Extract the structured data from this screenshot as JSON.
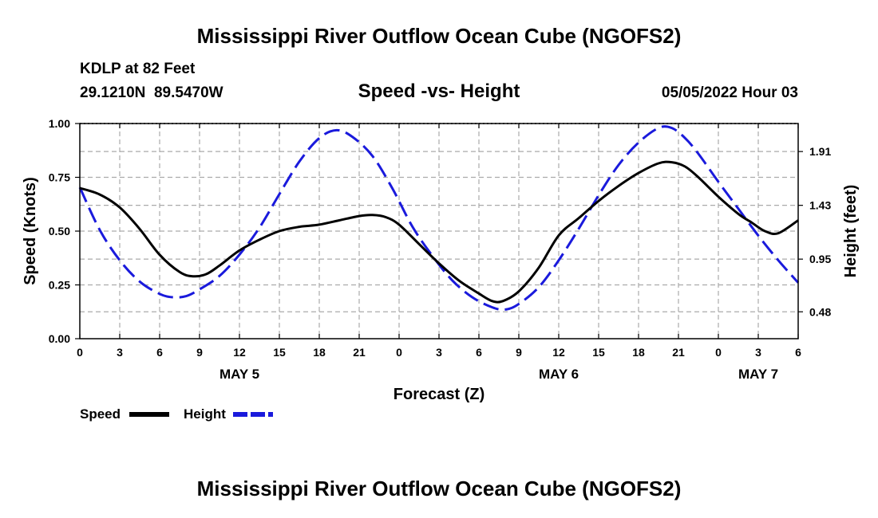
{
  "header": {
    "title": "Mississippi River Outflow Ocean Cube (NGOFS2)",
    "station": "KDLP at 82 Feet",
    "coords": "29.1210N  89.5470W",
    "datetime": "05/05/2022 Hour 03",
    "footer_title": "Mississippi River Outflow Ocean Cube (NGOFS2)"
  },
  "colors": {
    "speed": "#000000",
    "height": "#1a1adc",
    "grid": "#aaaaaa"
  },
  "chart_data": {
    "type": "line",
    "title": "Speed -vs- Height",
    "xlabel": "Forecast (Z)",
    "ylabel": "Speed (Knots)",
    "y2label": "Height (feet)",
    "xlim": [
      0,
      54
    ],
    "ylim": [
      0,
      1
    ],
    "y2lim": [
      0.24,
      2.16
    ],
    "x_ticks": [
      0,
      3,
      6,
      9,
      12,
      15,
      18,
      21,
      24,
      27,
      30,
      33,
      36,
      39,
      42,
      45,
      48,
      51,
      54
    ],
    "x_tick_labels": [
      "0",
      "3",
      "6",
      "9",
      "12",
      "15",
      "18",
      "21",
      "0",
      "3",
      "6",
      "9",
      "12",
      "15",
      "18",
      "21",
      "0",
      "3",
      "6"
    ],
    "day_labels": [
      {
        "x": 12,
        "label": "MAY 5"
      },
      {
        "x": 36,
        "label": "MAY 6"
      },
      {
        "x": 51,
        "label": "MAY 7"
      }
    ],
    "y_ticks": [
      0,
      0.25,
      0.5,
      0.75,
      1.0
    ],
    "y_tick_labels": [
      "0.00",
      "0.25",
      "0.50",
      "0.75",
      "1.00"
    ],
    "y2_ticks": [
      0.48,
      0.95,
      1.43,
      1.91
    ],
    "y2_tick_labels": [
      "0.48",
      "0.95",
      "1.43",
      "1.91"
    ],
    "legend": [
      "Speed",
      "Height"
    ],
    "series": [
      {
        "name": "Speed",
        "axis": "left",
        "style": "solid",
        "x": [
          0,
          1.5,
          3,
          4.5,
          6,
          7.5,
          8.5,
          9.5,
          10.5,
          12,
          13.5,
          15,
          16.5,
          18,
          19.5,
          21,
          22,
          23,
          24,
          25.5,
          27,
          28.5,
          30,
          31,
          31.8,
          33,
          34.5,
          36,
          37.5,
          39,
          40.5,
          42,
          43.5,
          44.5,
          45.5,
          46.5,
          48,
          49.5,
          50.5,
          51.5,
          52.5,
          54
        ],
        "values": [
          0.7,
          0.67,
          0.61,
          0.51,
          0.39,
          0.31,
          0.29,
          0.3,
          0.34,
          0.41,
          0.46,
          0.5,
          0.52,
          0.53,
          0.55,
          0.57,
          0.575,
          0.565,
          0.53,
          0.44,
          0.35,
          0.27,
          0.21,
          0.175,
          0.175,
          0.22,
          0.33,
          0.48,
          0.56,
          0.64,
          0.71,
          0.77,
          0.815,
          0.82,
          0.8,
          0.75,
          0.66,
          0.58,
          0.54,
          0.5,
          0.49,
          0.55
        ]
      },
      {
        "name": "Height",
        "axis": "right",
        "style": "dashed",
        "x": [
          0,
          1.5,
          3,
          4.5,
          6,
          7,
          8,
          9,
          10.5,
          12,
          13.5,
          15,
          16.5,
          18,
          19.3,
          20.5,
          22,
          23.5,
          25,
          26.5,
          28,
          29.5,
          31,
          32,
          33,
          34.5,
          36,
          37.5,
          39,
          40.5,
          42,
          43.5,
          44.5,
          45.5,
          46.5,
          48,
          49.5,
          51,
          52.5,
          54
        ],
        "values": [
          1.59,
          1.21,
          0.94,
          0.75,
          0.64,
          0.61,
          0.62,
          0.68,
          0.8,
          0.99,
          1.23,
          1.53,
          1.82,
          2.03,
          2.1,
          2.04,
          1.87,
          1.58,
          1.24,
          0.98,
          0.76,
          0.61,
          0.52,
          0.5,
          0.55,
          0.7,
          0.94,
          1.22,
          1.52,
          1.79,
          1.99,
          2.12,
          2.12,
          2.03,
          1.89,
          1.64,
          1.4,
          1.16,
          0.94,
          0.74
        ]
      }
    ]
  }
}
